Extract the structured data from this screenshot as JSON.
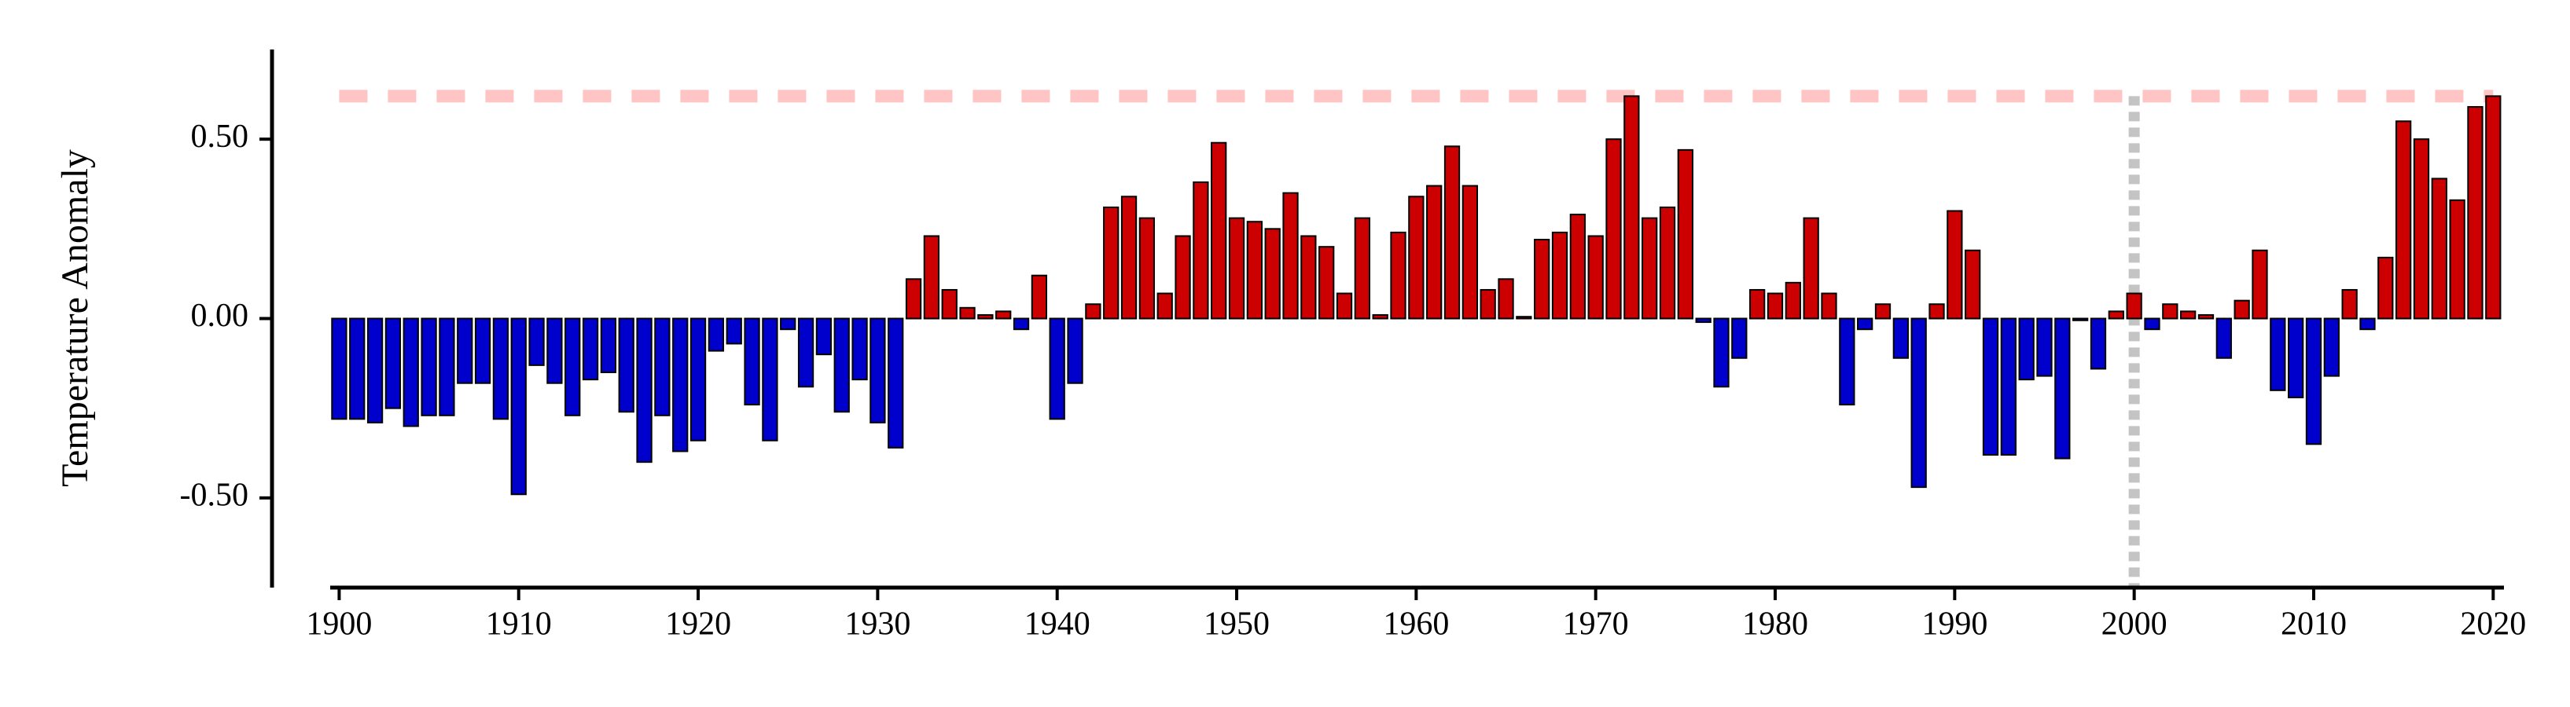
{
  "chart_data": {
    "type": "bar",
    "y_label": "Temperature Anomaly",
    "x": [
      1900,
      1901,
      1902,
      1903,
      1904,
      1905,
      1906,
      1907,
      1908,
      1909,
      1910,
      1911,
      1912,
      1913,
      1914,
      1915,
      1916,
      1917,
      1918,
      1919,
      1920,
      1921,
      1922,
      1923,
      1924,
      1925,
      1926,
      1927,
      1928,
      1929,
      1930,
      1931,
      1932,
      1933,
      1934,
      1935,
      1936,
      1937,
      1938,
      1939,
      1940,
      1941,
      1942,
      1943,
      1944,
      1945,
      1946,
      1947,
      1948,
      1949,
      1950,
      1951,
      1952,
      1953,
      1954,
      1955,
      1956,
      1957,
      1958,
      1959,
      1960,
      1961,
      1962,
      1963,
      1964,
      1965,
      1966,
      1967,
      1968,
      1969,
      1970,
      1971,
      1972,
      1973,
      1974,
      1975,
      1976,
      1977,
      1978,
      1979,
      1980,
      1981,
      1982,
      1983,
      1984,
      1985,
      1986,
      1987,
      1988,
      1989,
      1990,
      1991,
      1992,
      1993,
      1994,
      1995,
      1996,
      1997,
      1998,
      1999,
      2000,
      2001,
      2002,
      2003,
      2004,
      2005,
      2006,
      2007,
      2008,
      2009,
      2010,
      2011,
      2012,
      2013,
      2014,
      2015,
      2016,
      2017,
      2018,
      2019,
      2020
    ],
    "values": [
      -0.28,
      -0.28,
      -0.29,
      -0.25,
      -0.3,
      -0.27,
      -0.27,
      -0.18,
      -0.18,
      -0.28,
      -0.49,
      -0.13,
      -0.18,
      -0.27,
      -0.17,
      -0.15,
      -0.26,
      -0.4,
      -0.27,
      -0.37,
      -0.34,
      -0.09,
      -0.07,
      -0.24,
      -0.34,
      -0.03,
      -0.19,
      -0.1,
      -0.26,
      -0.17,
      -0.29,
      -0.36,
      0.11,
      0.23,
      0.08,
      0.03,
      0.01,
      0.02,
      -0.03,
      0.12,
      -0.28,
      -0.18,
      0.04,
      0.31,
      0.34,
      0.28,
      0.07,
      0.23,
      0.38,
      0.49,
      0.28,
      0.27,
      0.25,
      0.35,
      0.23,
      0.2,
      0.07,
      0.28,
      0.01,
      0.24,
      0.34,
      0.37,
      0.48,
      0.37,
      0.08,
      0.11,
      0.005,
      0.22,
      0.24,
      0.29,
      0.23,
      0.5,
      0.62,
      0.28,
      0.31,
      0.47,
      -0.01,
      -0.19,
      -0.11,
      0.08,
      0.07,
      0.1,
      0.28,
      0.07,
      -0.24,
      -0.03,
      0.04,
      -0.11,
      -0.47,
      0.04,
      0.3,
      0.19,
      -0.38,
      -0.38,
      -0.17,
      -0.16,
      -0.39,
      -0.005,
      -0.14,
      0.02,
      0.07,
      -0.03,
      0.04,
      0.02,
      0.01,
      -0.11,
      0.05,
      0.19,
      -0.2,
      -0.22,
      -0.35,
      -0.16,
      0.08,
      -0.03,
      0.17,
      0.55,
      0.5,
      0.39,
      0.33,
      0.59,
      0.62
    ],
    "positive_color": "#cc0000",
    "negative_color": "#0000cc",
    "xlim": [
      1899.5,
      2020.6
    ],
    "xticks": [
      1900,
      1910,
      1920,
      1930,
      1940,
      1950,
      1960,
      1970,
      1980,
      1990,
      2000,
      2010,
      2020
    ],
    "ylim": [
      -0.75,
      0.75
    ],
    "yticks": [
      {
        "value": -0.5,
        "label": "-0.50"
      },
      {
        "value": 0,
        "label": "0.00"
      },
      {
        "value": 0.5,
        "label": "0.50"
      }
    ],
    "hline": {
      "value": 0.62,
      "color": "#ffc4c4"
    },
    "vline": {
      "value": 2000,
      "color": "#c4c4c4"
    }
  }
}
